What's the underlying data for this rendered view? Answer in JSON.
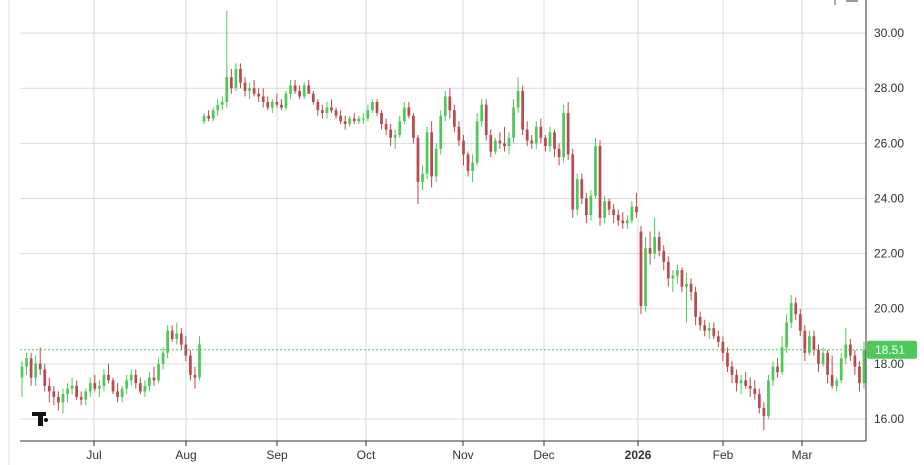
{
  "chart_data": {
    "type": "candlestick",
    "title": "",
    "xlabel": "",
    "ylabel": "",
    "ylim": [
      15.2,
      31.2
    ],
    "y_ticks": [
      "16.00",
      "18.00",
      "20.00",
      "22.00",
      "24.00",
      "26.00",
      "28.00",
      "30.00"
    ],
    "x_ticks": [
      {
        "label": "Jul",
        "bold": false
      },
      {
        "label": "Aug",
        "bold": false
      },
      {
        "label": "Sep",
        "bold": false
      },
      {
        "label": "Oct",
        "bold": false
      },
      {
        "label": "Nov",
        "bold": false
      },
      {
        "label": "Dec",
        "bold": false
      },
      {
        "label": "2026",
        "bold": true
      },
      {
        "label": "Feb",
        "bold": false
      },
      {
        "label": "Mar",
        "bold": false
      }
    ],
    "grid": true,
    "last_price": {
      "value": 18.51,
      "label": "18.51"
    },
    "colors": {
      "up": "#4fc85a",
      "down": "#b94a4f",
      "grid": "#d9d9d9",
      "axis": "#333333",
      "price_tag": "#4fc85a"
    },
    "series": [
      {
        "values": [
          [
            17.5,
            18.1,
            16.8,
            17.9
          ],
          [
            17.9,
            18.4,
            17.6,
            18.2
          ],
          [
            18.2,
            18.4,
            17.2,
            17.5
          ],
          [
            17.5,
            18.3,
            17.2,
            18.0
          ],
          [
            18.0,
            18.6,
            17.6,
            17.8
          ],
          [
            17.8,
            18.0,
            17.0,
            17.2
          ],
          [
            17.2,
            17.5,
            16.6,
            17.0
          ],
          [
            17.0,
            17.2,
            16.5,
            16.8
          ],
          [
            16.8,
            17.0,
            16.3,
            16.6
          ],
          [
            16.6,
            17.1,
            16.2,
            16.9
          ],
          [
            16.9,
            17.3,
            16.6,
            17.1
          ],
          [
            17.1,
            17.5,
            16.9,
            17.2
          ],
          [
            17.2,
            17.4,
            16.7,
            16.8
          ],
          [
            16.8,
            17.0,
            16.5,
            16.7
          ],
          [
            16.7,
            17.1,
            16.5,
            17.0
          ],
          [
            17.0,
            17.5,
            16.8,
            17.3
          ],
          [
            17.3,
            17.6,
            17.0,
            17.1
          ],
          [
            17.1,
            17.4,
            16.8,
            17.2
          ],
          [
            17.2,
            17.8,
            17.0,
            17.6
          ],
          [
            17.6,
            18.0,
            17.3,
            17.4
          ],
          [
            17.4,
            17.5,
            16.9,
            17.0
          ],
          [
            17.0,
            17.3,
            16.6,
            16.8
          ],
          [
            16.8,
            17.2,
            16.6,
            17.1
          ],
          [
            17.1,
            17.6,
            16.9,
            17.4
          ],
          [
            17.4,
            17.8,
            17.2,
            17.6
          ],
          [
            17.6,
            17.8,
            17.1,
            17.3
          ],
          [
            17.3,
            17.5,
            16.9,
            17.0
          ],
          [
            17.0,
            17.4,
            16.8,
            17.2
          ],
          [
            17.2,
            17.7,
            17.0,
            17.5
          ],
          [
            17.5,
            17.9,
            17.2,
            17.4
          ],
          [
            17.4,
            18.2,
            17.3,
            18.0
          ],
          [
            18.0,
            18.6,
            17.8,
            18.4
          ],
          [
            18.4,
            19.4,
            18.2,
            19.2
          ],
          [
            19.2,
            19.4,
            18.8,
            18.9
          ],
          [
            18.9,
            19.5,
            18.7,
            19.1
          ],
          [
            19.1,
            19.3,
            18.5,
            18.7
          ],
          [
            18.7,
            19.0,
            18.1,
            18.3
          ],
          [
            18.3,
            18.5,
            17.4,
            17.6
          ],
          [
            17.6,
            17.9,
            17.1,
            17.5
          ],
          [
            17.5,
            19.0,
            17.4,
            18.7
          ],
          [
            26.8,
            27.1,
            26.7,
            27.0
          ],
          [
            27.0,
            27.2,
            26.8,
            26.9
          ],
          [
            26.9,
            27.3,
            26.8,
            27.2
          ],
          [
            27.2,
            27.6,
            27.0,
            27.4
          ],
          [
            27.4,
            27.7,
            27.2,
            27.5
          ],
          [
            27.5,
            30.8,
            27.3,
            28.4
          ],
          [
            28.4,
            28.7,
            27.8,
            28.0
          ],
          [
            28.0,
            28.9,
            27.9,
            28.7
          ],
          [
            28.7,
            28.9,
            28.0,
            28.2
          ],
          [
            28.2,
            28.4,
            27.7,
            27.9
          ],
          [
            27.9,
            28.2,
            27.6,
            28.0
          ],
          [
            28.0,
            28.3,
            27.7,
            27.8
          ],
          [
            27.8,
            28.0,
            27.5,
            27.7
          ],
          [
            27.7,
            28.0,
            27.3,
            27.5
          ],
          [
            27.5,
            27.7,
            27.2,
            27.3
          ],
          [
            27.3,
            27.6,
            27.1,
            27.5
          ],
          [
            27.5,
            27.8,
            27.3,
            27.4
          ],
          [
            27.4,
            27.6,
            27.2,
            27.3
          ],
          [
            27.3,
            27.9,
            27.2,
            27.8
          ],
          [
            27.8,
            28.3,
            27.6,
            28.1
          ],
          [
            28.1,
            28.3,
            27.8,
            27.9
          ],
          [
            27.9,
            28.1,
            27.6,
            27.7
          ],
          [
            27.7,
            28.2,
            27.6,
            28.1
          ],
          [
            28.1,
            28.3,
            27.8,
            27.8
          ],
          [
            27.8,
            27.9,
            27.4,
            27.5
          ],
          [
            27.5,
            27.6,
            27.0,
            27.2
          ],
          [
            27.2,
            27.4,
            26.9,
            27.1
          ],
          [
            27.1,
            27.5,
            26.9,
            27.3
          ],
          [
            27.3,
            27.6,
            27.1,
            27.2
          ],
          [
            27.2,
            27.3,
            26.9,
            27.0
          ],
          [
            27.0,
            27.2,
            26.7,
            26.8
          ],
          [
            26.8,
            27.0,
            26.5,
            26.7
          ],
          [
            26.7,
            27.0,
            26.6,
            26.9
          ],
          [
            26.9,
            27.1,
            26.7,
            26.8
          ],
          [
            26.8,
            27.0,
            26.7,
            26.9
          ],
          [
            26.9,
            27.1,
            26.7,
            26.9
          ],
          [
            26.9,
            27.4,
            26.8,
            27.2
          ],
          [
            27.2,
            27.6,
            27.1,
            27.5
          ],
          [
            27.5,
            27.6,
            27.0,
            27.1
          ],
          [
            27.1,
            27.2,
            26.5,
            26.7
          ],
          [
            26.7,
            26.9,
            26.3,
            26.5
          ],
          [
            26.5,
            26.7,
            25.9,
            26.2
          ],
          [
            26.2,
            26.5,
            25.8,
            26.3
          ],
          [
            26.3,
            27.0,
            26.2,
            26.8
          ],
          [
            26.8,
            27.5,
            26.7,
            27.3
          ],
          [
            27.3,
            27.5,
            26.9,
            27.0
          ],
          [
            27.0,
            27.1,
            26.0,
            26.2
          ],
          [
            26.2,
            26.3,
            23.8,
            24.6
          ],
          [
            24.6,
            25.2,
            24.3,
            24.9
          ],
          [
            24.9,
            26.6,
            24.7,
            26.4
          ],
          [
            26.4,
            26.8,
            24.4,
            24.8
          ],
          [
            24.8,
            26.0,
            24.6,
            25.8
          ],
          [
            25.8,
            27.2,
            25.6,
            27.0
          ],
          [
            27.0,
            27.9,
            26.8,
            27.7
          ],
          [
            27.7,
            28.0,
            26.9,
            27.2
          ],
          [
            27.2,
            27.4,
            26.4,
            26.6
          ],
          [
            26.6,
            26.8,
            25.9,
            26.1
          ],
          [
            26.1,
            26.3,
            25.2,
            25.6
          ],
          [
            25.6,
            25.7,
            24.8,
            25.0
          ],
          [
            25.0,
            25.6,
            24.6,
            25.3
          ],
          [
            25.3,
            27.1,
            25.2,
            26.8
          ],
          [
            26.8,
            27.6,
            26.6,
            27.4
          ],
          [
            27.4,
            27.6,
            26.1,
            26.3
          ],
          [
            26.3,
            26.5,
            25.5,
            25.7
          ],
          [
            25.7,
            26.2,
            25.6,
            26.1
          ],
          [
            26.1,
            26.4,
            25.8,
            26.0
          ],
          [
            26.0,
            26.6,
            25.7,
            25.9
          ],
          [
            25.9,
            26.4,
            25.6,
            26.2
          ],
          [
            26.2,
            27.6,
            26.0,
            27.3
          ],
          [
            27.3,
            28.4,
            27.1,
            27.9
          ],
          [
            27.9,
            28.1,
            26.3,
            26.5
          ],
          [
            26.5,
            26.8,
            25.9,
            26.1
          ],
          [
            26.1,
            26.3,
            25.8,
            26.0
          ],
          [
            26.0,
            26.8,
            25.8,
            26.6
          ],
          [
            26.6,
            26.9,
            26.0,
            26.2
          ],
          [
            26.2,
            26.3,
            25.7,
            25.9
          ],
          [
            25.9,
            26.6,
            25.7,
            26.4
          ],
          [
            26.4,
            26.5,
            25.5,
            25.8
          ],
          [
            25.8,
            26.0,
            25.2,
            25.5
          ],
          [
            25.5,
            27.4,
            25.3,
            27.1
          ],
          [
            27.1,
            27.5,
            25.4,
            25.6
          ],
          [
            25.6,
            25.8,
            23.3,
            23.6
          ],
          [
            23.6,
            24.9,
            23.4,
            24.7
          ],
          [
            24.7,
            24.9,
            23.8,
            24.0
          ],
          [
            24.0,
            24.2,
            23.1,
            23.4
          ],
          [
            23.4,
            24.3,
            23.2,
            24.1
          ],
          [
            24.1,
            26.2,
            24.0,
            25.9
          ],
          [
            25.9,
            26.1,
            23.0,
            23.3
          ],
          [
            23.3,
            24.1,
            23.1,
            23.9
          ],
          [
            23.9,
            24.0,
            23.4,
            23.6
          ],
          [
            23.6,
            23.8,
            23.1,
            23.4
          ],
          [
            23.4,
            23.6,
            23.0,
            23.2
          ],
          [
            23.2,
            23.5,
            22.9,
            23.1
          ],
          [
            23.1,
            23.4,
            22.9,
            23.2
          ],
          [
            23.2,
            23.9,
            23.1,
            23.7
          ],
          [
            23.7,
            24.2,
            23.3,
            23.5
          ],
          [
            22.8,
            23.0,
            19.8,
            20.1
          ],
          [
            20.1,
            22.6,
            19.9,
            22.2
          ],
          [
            22.2,
            22.8,
            21.6,
            22.0
          ],
          [
            22.0,
            23.3,
            21.8,
            22.6
          ],
          [
            22.6,
            22.8,
            21.9,
            22.1
          ],
          [
            22.1,
            22.3,
            21.4,
            21.7
          ],
          [
            21.7,
            21.9,
            20.8,
            21.1
          ],
          [
            21.1,
            21.4,
            20.6,
            21.2
          ],
          [
            21.2,
            21.6,
            20.9,
            21.4
          ],
          [
            21.4,
            21.5,
            20.6,
            20.8
          ],
          [
            20.8,
            21.3,
            19.5,
            20.9
          ],
          [
            20.9,
            21.1,
            20.3,
            20.6
          ],
          [
            20.6,
            20.8,
            19.4,
            19.7
          ],
          [
            19.7,
            19.9,
            19.2,
            19.4
          ],
          [
            19.4,
            19.6,
            19.0,
            19.2
          ],
          [
            19.2,
            19.5,
            18.9,
            19.3
          ],
          [
            19.3,
            19.5,
            18.9,
            19.0
          ],
          [
            19.0,
            19.2,
            18.6,
            18.8
          ],
          [
            18.8,
            19.0,
            18.1,
            18.4
          ],
          [
            18.4,
            18.6,
            17.7,
            17.9
          ],
          [
            17.9,
            18.1,
            17.3,
            17.6
          ],
          [
            17.6,
            17.8,
            17.0,
            17.3
          ],
          [
            17.3,
            17.6,
            16.9,
            17.4
          ],
          [
            17.4,
            17.7,
            17.1,
            17.2
          ],
          [
            17.2,
            17.5,
            16.8,
            17.1
          ],
          [
            17.1,
            17.4,
            16.7,
            16.9
          ],
          [
            16.9,
            17.1,
            16.2,
            16.4
          ],
          [
            16.4,
            16.6,
            15.6,
            16.1
          ],
          [
            16.1,
            17.6,
            16.0,
            17.4
          ],
          [
            17.4,
            18.1,
            17.2,
            17.9
          ],
          [
            17.9,
            18.2,
            17.5,
            17.7
          ],
          [
            17.7,
            19.0,
            17.6,
            18.6
          ],
          [
            18.6,
            19.8,
            18.4,
            19.5
          ],
          [
            19.5,
            20.5,
            19.3,
            20.2
          ],
          [
            20.2,
            20.4,
            19.6,
            19.8
          ],
          [
            19.8,
            20.0,
            19.0,
            19.2
          ],
          [
            19.2,
            19.4,
            18.1,
            18.4
          ],
          [
            18.4,
            19.2,
            18.3,
            19.0
          ],
          [
            19.0,
            19.2,
            18.3,
            18.5
          ],
          [
            18.5,
            18.7,
            17.7,
            18.0
          ],
          [
            18.0,
            18.6,
            17.9,
            18.4
          ],
          [
            18.4,
            18.5,
            17.3,
            17.6
          ],
          [
            17.6,
            18.3,
            17.1,
            17.2
          ],
          [
            17.2,
            17.5,
            17.0,
            17.4
          ],
          [
            17.4,
            18.4,
            17.3,
            18.2
          ],
          [
            18.2,
            19.3,
            18.0,
            18.7
          ],
          [
            18.7,
            18.9,
            18.1,
            18.3
          ],
          [
            18.3,
            18.5,
            17.6,
            17.9
          ],
          [
            17.9,
            18.1,
            17.0,
            17.3
          ],
          [
            17.3,
            18.8,
            17.1,
            18.51
          ]
        ]
      }
    ]
  }
}
